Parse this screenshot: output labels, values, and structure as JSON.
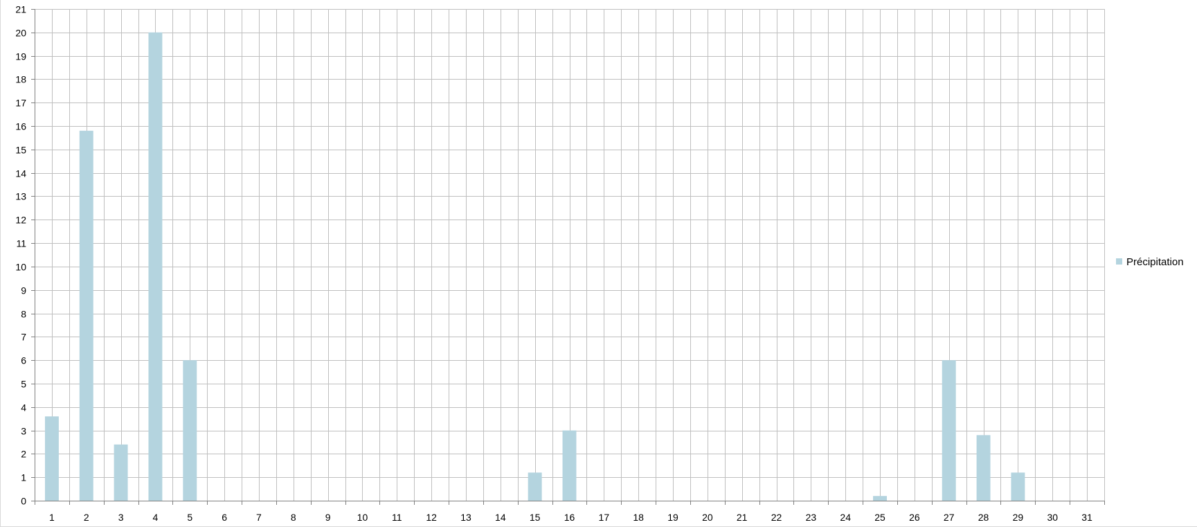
{
  "chart_data": {
    "type": "bar",
    "title": "",
    "xlabel": "",
    "ylabel": "",
    "categories": [
      "1",
      "2",
      "3",
      "4",
      "5",
      "6",
      "7",
      "8",
      "9",
      "10",
      "11",
      "12",
      "13",
      "14",
      "15",
      "16",
      "17",
      "18",
      "19",
      "20",
      "21",
      "22",
      "23",
      "24",
      "25",
      "26",
      "27",
      "28",
      "29",
      "30",
      "31"
    ],
    "series": [
      {
        "name": "Précipitation",
        "color": "#b4d4df",
        "values": [
          3.6,
          15.8,
          2.4,
          20,
          6,
          0,
          0,
          0,
          0,
          0,
          0,
          0,
          0,
          0,
          1.2,
          3,
          0,
          0,
          0,
          0,
          0,
          0,
          0,
          0,
          0.2,
          0,
          6,
          2.8,
          1.2,
          0,
          0
        ]
      }
    ],
    "ylim": [
      0,
      21
    ],
    "ytick_step": 1,
    "minor_gridlines": true,
    "grid": true,
    "grid_color": "#bfbfbf",
    "axis_color": "#7f7f7f",
    "legend_position": "right"
  }
}
